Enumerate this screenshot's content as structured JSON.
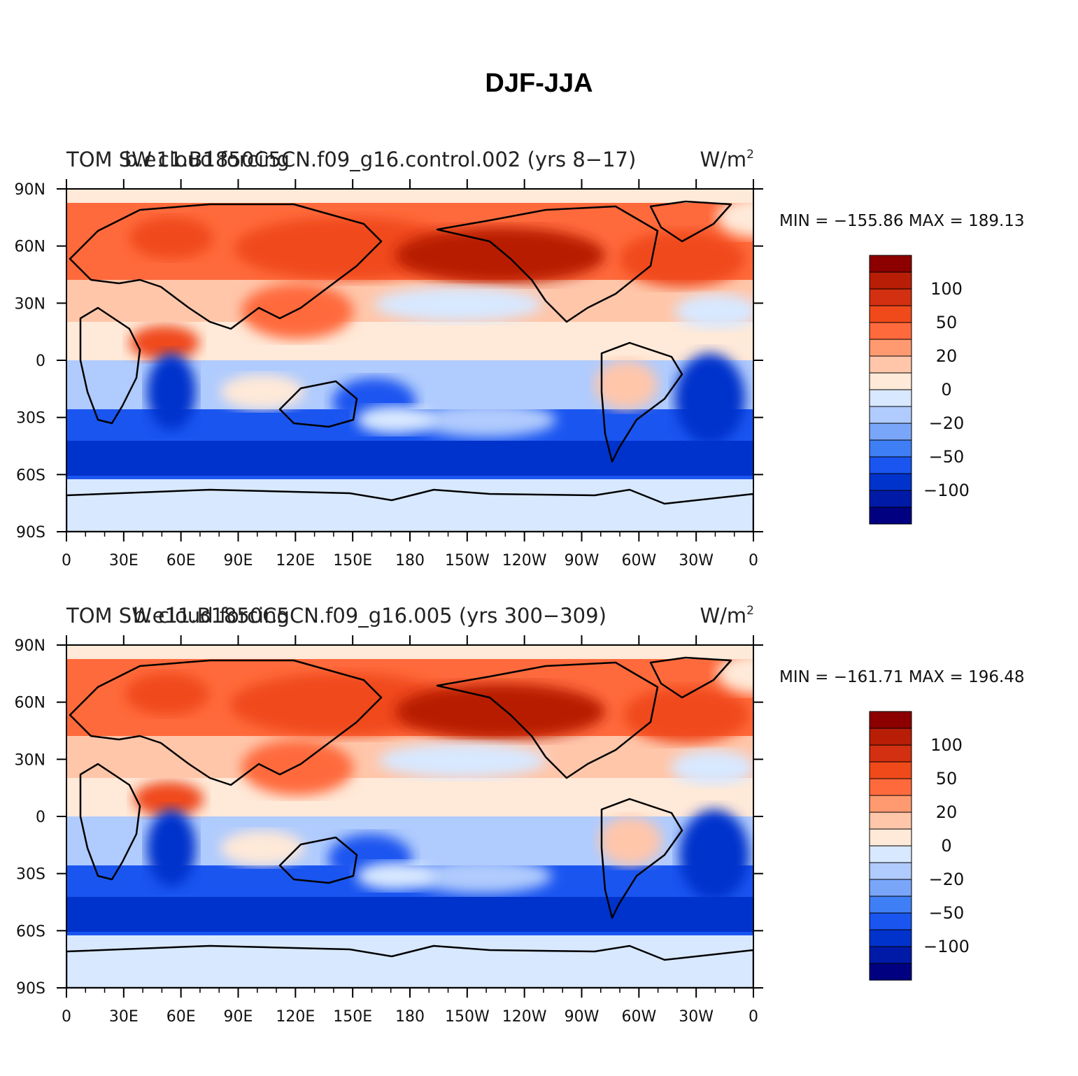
{
  "title": "DJF-JJA",
  "panels": [
    {
      "left_title_a": "TOM SW cloud forcing",
      "left_title_b": "b.e11.B1850C5CN.f09_g16.control.002 (yrs 8−17)",
      "units": "W/m",
      "units_sup": "2",
      "min_label": "MIN",
      "min_value": "−155.86",
      "max_label": "MAX",
      "max_value": "189.13"
    },
    {
      "left_title_a": "TOM SW cloud forcing",
      "left_title_b": "b.e11.B1850C5CN.f09_g16.005 (yrs 300−309)",
      "units": "W/m",
      "units_sup": "2",
      "min_label": "MIN",
      "min_value": "−161.71",
      "max_label": "MAX",
      "max_value": "196.48"
    }
  ],
  "x_ticks": [
    "0",
    "30E",
    "60E",
    "90E",
    "120E",
    "150E",
    "180",
    "150W",
    "120W",
    "90W",
    "60W",
    "30W",
    "0"
  ],
  "y_ticks": [
    "90N",
    "60N",
    "30N",
    "0",
    "30S",
    "60S",
    "90S"
  ],
  "colorbar": {
    "colors": [
      "#000080",
      "#001aa8",
      "#0033cc",
      "#1a55f0",
      "#3f7ff5",
      "#7aa6fa",
      "#b0cbfd",
      "#d8e8ff",
      "#ffe9d8",
      "#ffc6aa",
      "#ff9a70",
      "#ff6a3c",
      "#f04a1a",
      "#d23010",
      "#b81e06",
      "#8c0000"
    ],
    "labels": [
      "−100",
      "−50",
      "−20",
      "0",
      "20",
      "50",
      "100"
    ]
  },
  "palette": {
    "ocean_blue": "#1a55f0",
    "deep_blue": "#001aa8",
    "south_ocean": "#0033cc",
    "light_blue": "#b0cbfd",
    "pale_blue": "#d8e8ff",
    "cream": "#ffe9d8",
    "salmon": "#ffc6aa",
    "orange": "#ff6a3c",
    "red_orange": "#f04a1a",
    "dark_red": "#b81e06",
    "coastline": "#000000"
  }
}
